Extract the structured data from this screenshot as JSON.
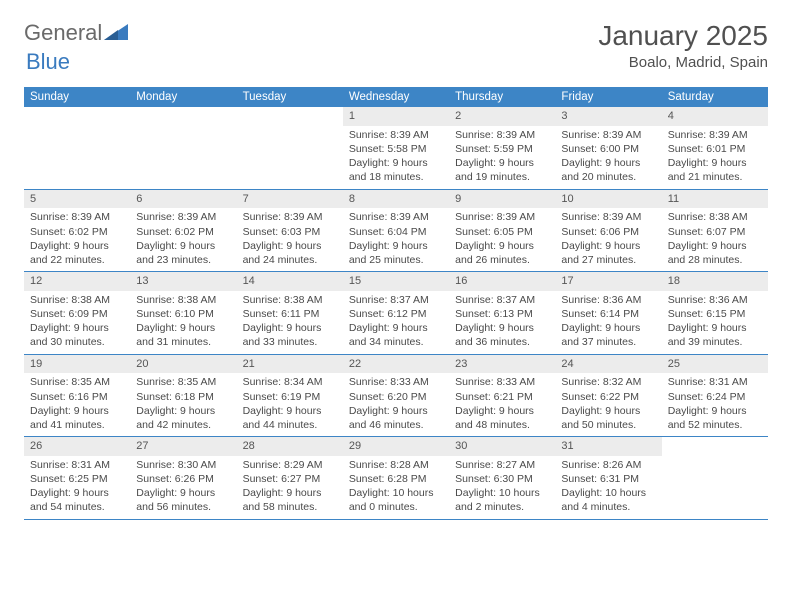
{
  "logo": {
    "text1": "General",
    "text2": "Blue"
  },
  "title": "January 2025",
  "location": "Boalo, Madrid, Spain",
  "colors": {
    "header_bg": "#3d85c6",
    "header_text": "#ffffff",
    "daynum_bg": "#ececec",
    "border": "#3d85c6",
    "body_text": "#4a4a4a",
    "title_text": "#505050",
    "logo_gray": "#6a6a6a",
    "logo_blue": "#3a7bbf"
  },
  "day_names": [
    "Sunday",
    "Monday",
    "Tuesday",
    "Wednesday",
    "Thursday",
    "Friday",
    "Saturday"
  ],
  "weeks": [
    [
      {
        "blank": true
      },
      {
        "blank": true
      },
      {
        "blank": true
      },
      {
        "day": "1",
        "sunrise": "Sunrise: 8:39 AM",
        "sunset": "Sunset: 5:58 PM",
        "dl1": "Daylight: 9 hours",
        "dl2": "and 18 minutes."
      },
      {
        "day": "2",
        "sunrise": "Sunrise: 8:39 AM",
        "sunset": "Sunset: 5:59 PM",
        "dl1": "Daylight: 9 hours",
        "dl2": "and 19 minutes."
      },
      {
        "day": "3",
        "sunrise": "Sunrise: 8:39 AM",
        "sunset": "Sunset: 6:00 PM",
        "dl1": "Daylight: 9 hours",
        "dl2": "and 20 minutes."
      },
      {
        "day": "4",
        "sunrise": "Sunrise: 8:39 AM",
        "sunset": "Sunset: 6:01 PM",
        "dl1": "Daylight: 9 hours",
        "dl2": "and 21 minutes."
      }
    ],
    [
      {
        "day": "5",
        "sunrise": "Sunrise: 8:39 AM",
        "sunset": "Sunset: 6:02 PM",
        "dl1": "Daylight: 9 hours",
        "dl2": "and 22 minutes."
      },
      {
        "day": "6",
        "sunrise": "Sunrise: 8:39 AM",
        "sunset": "Sunset: 6:02 PM",
        "dl1": "Daylight: 9 hours",
        "dl2": "and 23 minutes."
      },
      {
        "day": "7",
        "sunrise": "Sunrise: 8:39 AM",
        "sunset": "Sunset: 6:03 PM",
        "dl1": "Daylight: 9 hours",
        "dl2": "and 24 minutes."
      },
      {
        "day": "8",
        "sunrise": "Sunrise: 8:39 AM",
        "sunset": "Sunset: 6:04 PM",
        "dl1": "Daylight: 9 hours",
        "dl2": "and 25 minutes."
      },
      {
        "day": "9",
        "sunrise": "Sunrise: 8:39 AM",
        "sunset": "Sunset: 6:05 PM",
        "dl1": "Daylight: 9 hours",
        "dl2": "and 26 minutes."
      },
      {
        "day": "10",
        "sunrise": "Sunrise: 8:39 AM",
        "sunset": "Sunset: 6:06 PM",
        "dl1": "Daylight: 9 hours",
        "dl2": "and 27 minutes."
      },
      {
        "day": "11",
        "sunrise": "Sunrise: 8:38 AM",
        "sunset": "Sunset: 6:07 PM",
        "dl1": "Daylight: 9 hours",
        "dl2": "and 28 minutes."
      }
    ],
    [
      {
        "day": "12",
        "sunrise": "Sunrise: 8:38 AM",
        "sunset": "Sunset: 6:09 PM",
        "dl1": "Daylight: 9 hours",
        "dl2": "and 30 minutes."
      },
      {
        "day": "13",
        "sunrise": "Sunrise: 8:38 AM",
        "sunset": "Sunset: 6:10 PM",
        "dl1": "Daylight: 9 hours",
        "dl2": "and 31 minutes."
      },
      {
        "day": "14",
        "sunrise": "Sunrise: 8:38 AM",
        "sunset": "Sunset: 6:11 PM",
        "dl1": "Daylight: 9 hours",
        "dl2": "and 33 minutes."
      },
      {
        "day": "15",
        "sunrise": "Sunrise: 8:37 AM",
        "sunset": "Sunset: 6:12 PM",
        "dl1": "Daylight: 9 hours",
        "dl2": "and 34 minutes."
      },
      {
        "day": "16",
        "sunrise": "Sunrise: 8:37 AM",
        "sunset": "Sunset: 6:13 PM",
        "dl1": "Daylight: 9 hours",
        "dl2": "and 36 minutes."
      },
      {
        "day": "17",
        "sunrise": "Sunrise: 8:36 AM",
        "sunset": "Sunset: 6:14 PM",
        "dl1": "Daylight: 9 hours",
        "dl2": "and 37 minutes."
      },
      {
        "day": "18",
        "sunrise": "Sunrise: 8:36 AM",
        "sunset": "Sunset: 6:15 PM",
        "dl1": "Daylight: 9 hours",
        "dl2": "and 39 minutes."
      }
    ],
    [
      {
        "day": "19",
        "sunrise": "Sunrise: 8:35 AM",
        "sunset": "Sunset: 6:16 PM",
        "dl1": "Daylight: 9 hours",
        "dl2": "and 41 minutes."
      },
      {
        "day": "20",
        "sunrise": "Sunrise: 8:35 AM",
        "sunset": "Sunset: 6:18 PM",
        "dl1": "Daylight: 9 hours",
        "dl2": "and 42 minutes."
      },
      {
        "day": "21",
        "sunrise": "Sunrise: 8:34 AM",
        "sunset": "Sunset: 6:19 PM",
        "dl1": "Daylight: 9 hours",
        "dl2": "and 44 minutes."
      },
      {
        "day": "22",
        "sunrise": "Sunrise: 8:33 AM",
        "sunset": "Sunset: 6:20 PM",
        "dl1": "Daylight: 9 hours",
        "dl2": "and 46 minutes."
      },
      {
        "day": "23",
        "sunrise": "Sunrise: 8:33 AM",
        "sunset": "Sunset: 6:21 PM",
        "dl1": "Daylight: 9 hours",
        "dl2": "and 48 minutes."
      },
      {
        "day": "24",
        "sunrise": "Sunrise: 8:32 AM",
        "sunset": "Sunset: 6:22 PM",
        "dl1": "Daylight: 9 hours",
        "dl2": "and 50 minutes."
      },
      {
        "day": "25",
        "sunrise": "Sunrise: 8:31 AM",
        "sunset": "Sunset: 6:24 PM",
        "dl1": "Daylight: 9 hours",
        "dl2": "and 52 minutes."
      }
    ],
    [
      {
        "day": "26",
        "sunrise": "Sunrise: 8:31 AM",
        "sunset": "Sunset: 6:25 PM",
        "dl1": "Daylight: 9 hours",
        "dl2": "and 54 minutes."
      },
      {
        "day": "27",
        "sunrise": "Sunrise: 8:30 AM",
        "sunset": "Sunset: 6:26 PM",
        "dl1": "Daylight: 9 hours",
        "dl2": "and 56 minutes."
      },
      {
        "day": "28",
        "sunrise": "Sunrise: 8:29 AM",
        "sunset": "Sunset: 6:27 PM",
        "dl1": "Daylight: 9 hours",
        "dl2": "and 58 minutes."
      },
      {
        "day": "29",
        "sunrise": "Sunrise: 8:28 AM",
        "sunset": "Sunset: 6:28 PM",
        "dl1": "Daylight: 10 hours",
        "dl2": "and 0 minutes."
      },
      {
        "day": "30",
        "sunrise": "Sunrise: 8:27 AM",
        "sunset": "Sunset: 6:30 PM",
        "dl1": "Daylight: 10 hours",
        "dl2": "and 2 minutes."
      },
      {
        "day": "31",
        "sunrise": "Sunrise: 8:26 AM",
        "sunset": "Sunset: 6:31 PM",
        "dl1": "Daylight: 10 hours",
        "dl2": "and 4 minutes."
      },
      {
        "blank": true
      }
    ]
  ]
}
